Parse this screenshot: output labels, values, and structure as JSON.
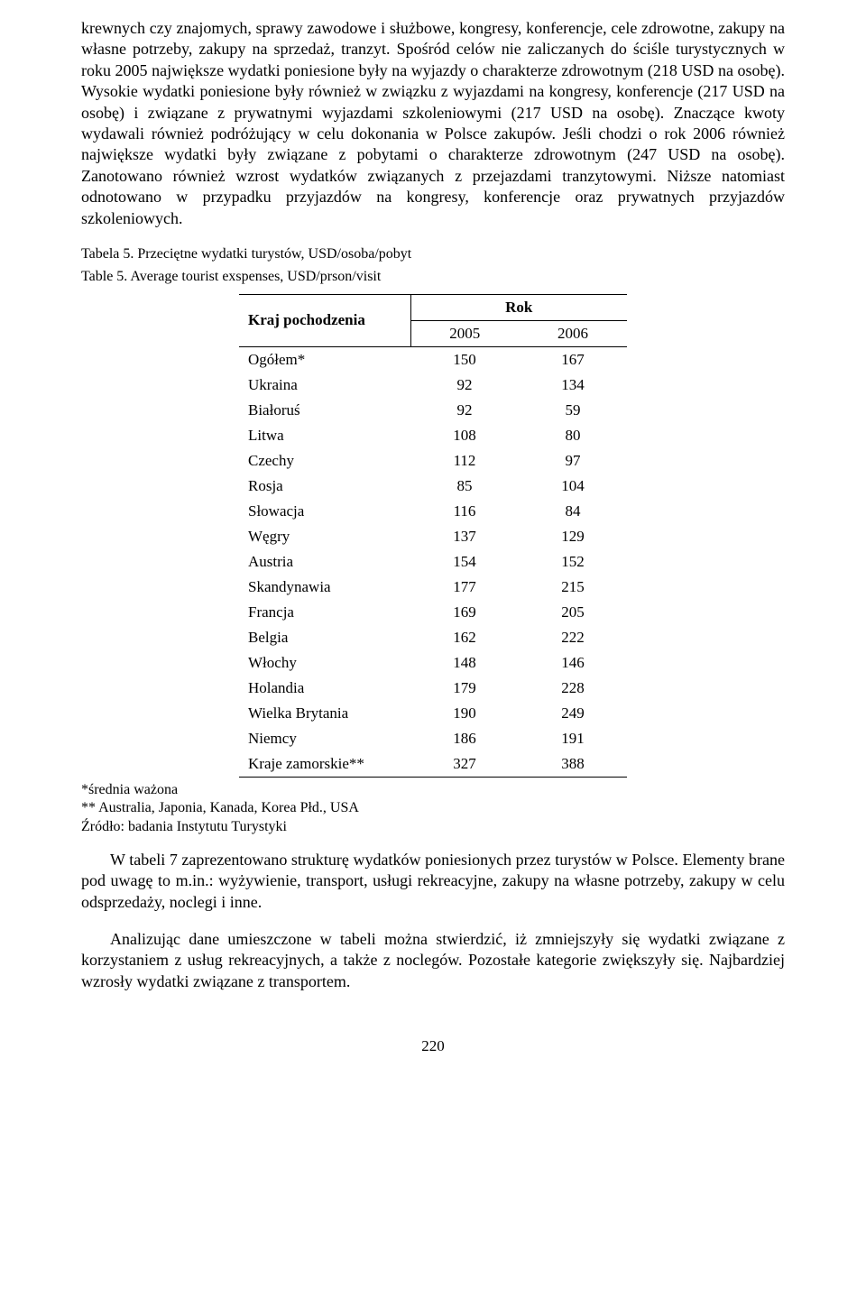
{
  "paragraph1": "krewnych czy znajomych, sprawy zawodowe i służbowe, kongresy, konferencje, cele zdrowotne, zakupy na własne potrzeby, zakupy na sprzedaż, tranzyt. Spośród celów nie zaliczanych do ściśle turystycznych w roku 2005 największe wydatki poniesione były na wyjazdy o charakterze zdrowotnym (218 USD na osobę). Wysokie wydatki poniesione były również w związku z wyjazdami na kongresy, konferencje (217 USD na osobę) i związane z prywatnymi wyjazdami szkoleniowymi (217 USD na osobę). Znaczące kwoty wydawali również podróżujący w celu dokonania w Polsce zakupów. Jeśli chodzi o rok 2006 również największe wydatki były związane z pobytami o charakterze zdrowotnym (247 USD na osobę). Zanotowano również wzrost wydatków związanych z przejazdami tranzytowymi. Niższe natomiast odnotowano w przypadku przyjazdów na kongresy, konferencje oraz prywatnych przyjazdów szkoleniowych.",
  "table_caption_pl": "Tabela 5. Przeciętne wydatki turystów, USD/osoba/pobyt",
  "table_caption_en": "Table 5. Average tourist exspenses, USD/prson/visit",
  "table": {
    "header_country": "Kraj pochodzenia",
    "header_rok": "Rok",
    "years": [
      "2005",
      "2006"
    ],
    "rows": [
      {
        "country": "Ogółem*",
        "y2005": "150",
        "y2006": "167"
      },
      {
        "country": "Ukraina",
        "y2005": "92",
        "y2006": "134"
      },
      {
        "country": "Białoruś",
        "y2005": "92",
        "y2006": "59"
      },
      {
        "country": "Litwa",
        "y2005": "108",
        "y2006": "80"
      },
      {
        "country": "Czechy",
        "y2005": "112",
        "y2006": "97"
      },
      {
        "country": "Rosja",
        "y2005": "85",
        "y2006": "104"
      },
      {
        "country": "Słowacja",
        "y2005": "116",
        "y2006": "84"
      },
      {
        "country": "Węgry",
        "y2005": "137",
        "y2006": "129"
      },
      {
        "country": "Austria",
        "y2005": "154",
        "y2006": "152"
      },
      {
        "country": "Skandynawia",
        "y2005": "177",
        "y2006": "215"
      },
      {
        "country": "Francja",
        "y2005": "169",
        "y2006": "205"
      },
      {
        "country": "Belgia",
        "y2005": "162",
        "y2006": "222"
      },
      {
        "country": "Włochy",
        "y2005": "148",
        "y2006": "146"
      },
      {
        "country": "Holandia",
        "y2005": "179",
        "y2006": "228"
      },
      {
        "country": "Wielka Brytania",
        "y2005": "190",
        "y2006": "249"
      },
      {
        "country": "Niemcy",
        "y2005": "186",
        "y2006": "191"
      },
      {
        "country": "Kraje zamorskie**",
        "y2005": "327",
        "y2006": "388"
      }
    ]
  },
  "footnote1": "*średnia ważona",
  "footnote2": "** Australia, Japonia, Kanada, Korea Płd., USA",
  "footnote3": "Źródło: badania Instytutu Turystyki",
  "paragraph2": "W tabeli 7 zaprezentowano strukturę wydatków poniesionych przez turystów w Polsce. Elementy brane pod uwagę to m.in.: wyżywienie, transport, usługi rekreacyjne, zakupy na własne potrzeby, zakupy w celu odsprzedaży, noclegi i inne.",
  "paragraph3": "Analizując dane umieszczone w tabeli można stwierdzić, iż zmniejszyły się wydatki związane z korzystaniem z usług rekreacyjnych, a także z noclegów. Pozostałe kategorie zwiększyły się. Najbardziej wzrosły wydatki związane z transportem.",
  "page_number": "220"
}
